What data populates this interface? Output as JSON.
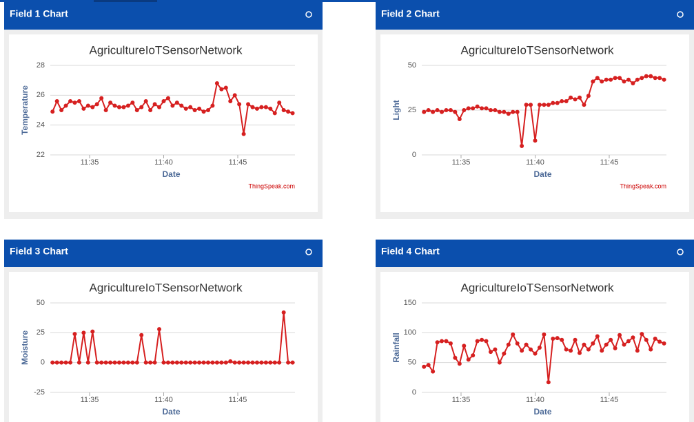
{
  "chart_data": [
    {
      "type": "line",
      "panel_title": "Field 1 Chart",
      "title": "AgricultureIoTSensorNetwork",
      "x_label": "Date",
      "y_label": "Temperature",
      "credit": "ThingSpeak.com",
      "color": "#d62020",
      "grid": true,
      "xlim": [
        692.35,
        708.86
      ],
      "xticks": [
        {
          "value": 695,
          "label": "11:35"
        },
        {
          "value": 700,
          "label": "11:40"
        },
        {
          "value": 705,
          "label": "11:45"
        }
      ],
      "ylim": [
        22,
        28
      ],
      "yticks": [
        22,
        24,
        26,
        28
      ],
      "x": [
        692.5,
        692.8,
        693.1,
        693.4,
        693.7,
        694.0,
        694.3,
        694.6,
        694.9,
        695.2,
        695.5,
        695.8,
        696.1,
        696.4,
        696.7,
        697.0,
        697.3,
        697.6,
        697.9,
        698.2,
        698.5,
        698.8,
        699.1,
        699.4,
        699.7,
        700.0,
        700.3,
        700.6,
        700.9,
        701.2,
        701.5,
        701.8,
        702.1,
        702.4,
        702.7,
        703.0,
        703.3,
        703.6,
        703.9,
        704.2,
        704.5,
        704.8,
        705.1,
        705.4,
        705.7,
        706.0,
        706.3,
        706.6,
        706.9,
        707.2,
        707.5,
        707.8,
        708.1,
        708.4,
        708.7
      ],
      "values": [
        24.9,
        25.6,
        25.0,
        25.3,
        25.6,
        25.5,
        25.6,
        25.1,
        25.3,
        25.2,
        25.4,
        25.8,
        25.0,
        25.5,
        25.3,
        25.2,
        25.2,
        25.3,
        25.5,
        25.0,
        25.2,
        25.6,
        25.0,
        25.4,
        25.2,
        25.6,
        25.8,
        25.3,
        25.5,
        25.3,
        25.1,
        25.2,
        25.0,
        25.1,
        24.9,
        25.0,
        25.3,
        26.8,
        26.4,
        26.5,
        25.6,
        26.0,
        25.4,
        23.4,
        25.4,
        25.2,
        25.1,
        25.2,
        25.2,
        25.1,
        24.8,
        25.5,
        25.0,
        24.9,
        24.8
      ]
    },
    {
      "type": "line",
      "panel_title": "Field 2 Chart",
      "title": "AgricultureIoTSensorNetwork",
      "x_label": "Date",
      "y_label": "Light",
      "credit": "ThingSpeak.com",
      "color": "#d62020",
      "grid": true,
      "xlim": [
        692.35,
        708.86
      ],
      "xticks": [
        {
          "value": 695,
          "label": "11:35"
        },
        {
          "value": 700,
          "label": "11:40"
        },
        {
          "value": 705,
          "label": "11:45"
        }
      ],
      "ylim": [
        0,
        50
      ],
      "yticks": [
        0,
        25,
        50
      ],
      "x": [
        692.5,
        692.8,
        693.1,
        693.4,
        693.7,
        694.0,
        694.3,
        694.6,
        694.9,
        695.2,
        695.5,
        695.8,
        696.1,
        696.4,
        696.7,
        697.0,
        697.3,
        697.6,
        697.9,
        698.2,
        698.5,
        698.8,
        699.1,
        699.4,
        699.7,
        700.0,
        700.3,
        700.6,
        700.9,
        701.2,
        701.5,
        701.8,
        702.1,
        702.4,
        702.7,
        703.0,
        703.3,
        703.6,
        703.9,
        704.2,
        704.5,
        704.8,
        705.1,
        705.4,
        705.7,
        706.0,
        706.3,
        706.6,
        706.9,
        707.2,
        707.5,
        707.8,
        708.1,
        708.4,
        708.7
      ],
      "values": [
        24,
        25,
        24,
        25,
        24,
        25,
        25,
        24,
        20,
        25,
        26,
        26,
        27,
        26,
        26,
        25,
        25,
        24,
        24,
        23,
        24,
        24,
        5,
        28,
        28,
        8,
        28,
        28,
        28,
        29,
        29,
        30,
        30,
        32,
        31,
        32,
        28,
        33,
        41,
        43,
        41,
        42,
        42,
        43,
        43,
        41,
        42,
        40,
        42,
        43,
        44,
        44,
        43,
        43,
        42
      ]
    },
    {
      "type": "line",
      "panel_title": "Field 3 Chart",
      "title": "AgricultureIoTSensorNetwork",
      "x_label": "Date",
      "y_label": "Moisture",
      "color": "#d62020",
      "grid": true,
      "xlim": [
        692.35,
        708.86
      ],
      "xticks": [
        {
          "value": 695,
          "label": "11:35"
        },
        {
          "value": 700,
          "label": "11:40"
        },
        {
          "value": 705,
          "label": "11:45"
        }
      ],
      "ylim": [
        -25,
        50
      ],
      "yticks": [
        -25,
        0,
        25,
        50
      ],
      "x": [
        692.5,
        692.8,
        693.1,
        693.4,
        693.7,
        694.0,
        694.3,
        694.6,
        694.9,
        695.2,
        695.5,
        695.8,
        696.1,
        696.4,
        696.7,
        697.0,
        697.3,
        697.6,
        697.9,
        698.2,
        698.5,
        698.8,
        699.1,
        699.4,
        699.7,
        700.0,
        700.3,
        700.6,
        700.9,
        701.2,
        701.5,
        701.8,
        702.1,
        702.4,
        702.7,
        703.0,
        703.3,
        703.6,
        703.9,
        704.2,
        704.5,
        704.8,
        705.1,
        705.4,
        705.7,
        706.0,
        706.3,
        706.6,
        706.9,
        707.2,
        707.5,
        707.8,
        708.1,
        708.4,
        708.7
      ],
      "values": [
        0,
        0,
        0,
        0,
        0,
        24,
        0,
        25,
        0,
        26,
        0,
        0,
        0,
        0,
        0,
        0,
        0,
        0,
        0,
        0,
        23,
        0,
        0,
        0,
        28,
        0,
        0,
        0,
        0,
        0,
        0,
        0,
        0,
        0,
        0,
        0,
        0,
        0,
        0,
        0,
        1,
        0,
        0,
        0,
        0,
        0,
        0,
        0,
        0,
        0,
        0,
        0,
        42,
        0,
        0
      ]
    },
    {
      "type": "line",
      "panel_title": "Field 4 Chart",
      "title": "AgricultureIoTSensorNetwork",
      "x_label": "Date",
      "y_label": "Rainfall",
      "color": "#d62020",
      "grid": true,
      "xlim": [
        692.35,
        708.86
      ],
      "xticks": [
        {
          "value": 695,
          "label": "11:35"
        },
        {
          "value": 700,
          "label": "11:40"
        },
        {
          "value": 705,
          "label": "11:45"
        }
      ],
      "ylim": [
        0,
        150
      ],
      "yticks": [
        0,
        50,
        100,
        150
      ],
      "x": [
        692.5,
        692.8,
        693.1,
        693.4,
        693.7,
        694.0,
        694.3,
        694.6,
        694.9,
        695.2,
        695.5,
        695.8,
        696.1,
        696.4,
        696.7,
        697.0,
        697.3,
        697.6,
        697.9,
        698.2,
        698.5,
        698.8,
        699.1,
        699.4,
        699.7,
        700.0,
        700.3,
        700.6,
        700.9,
        701.2,
        701.5,
        701.8,
        702.1,
        702.4,
        702.7,
        703.0,
        703.3,
        703.6,
        703.9,
        704.2,
        704.5,
        704.8,
        705.1,
        705.4,
        705.7,
        706.0,
        706.3,
        706.6,
        706.9,
        707.2,
        707.5,
        707.8,
        708.1,
        708.4,
        708.7
      ],
      "values": [
        43,
        46,
        35,
        84,
        86,
        86,
        82,
        58,
        48,
        78,
        55,
        62,
        86,
        88,
        86,
        68,
        72,
        50,
        65,
        80,
        97,
        82,
        70,
        80,
        72,
        65,
        75,
        97,
        17,
        90,
        91,
        88,
        72,
        70,
        88,
        66,
        80,
        72,
        82,
        94,
        70,
        80,
        88,
        74,
        96,
        80,
        86,
        92,
        70,
        98,
        88,
        72,
        90,
        85,
        82
      ]
    }
  ]
}
